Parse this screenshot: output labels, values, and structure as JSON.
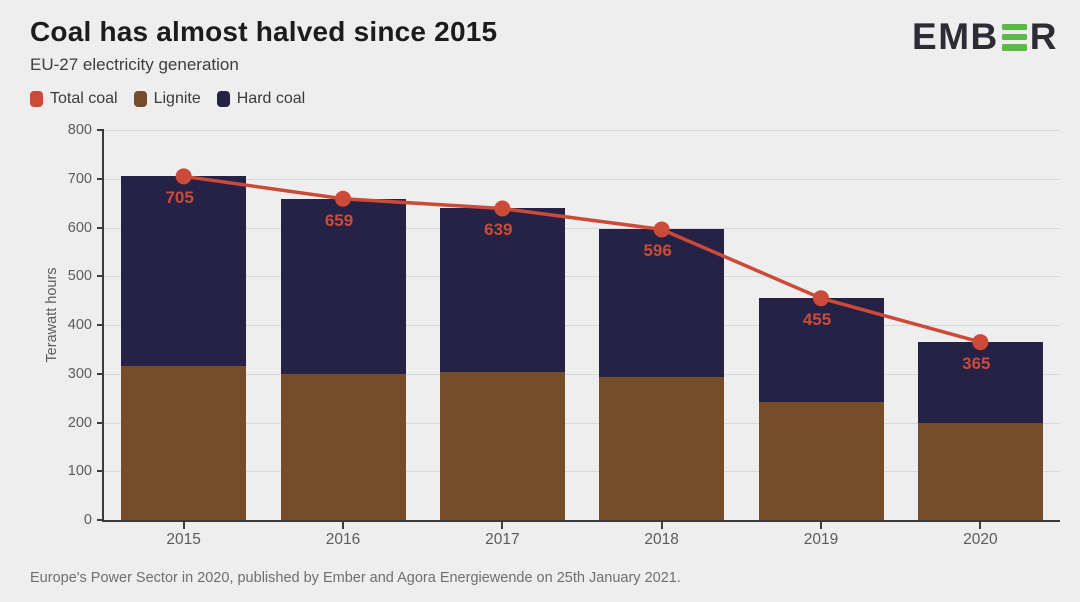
{
  "header": {
    "title": "Coal has almost halved since 2015",
    "subtitle": "EU-27 electricity generation",
    "logo": {
      "prefix": "EMB",
      "suffix": "R",
      "name": "EMBER",
      "green": "#5cb946",
      "dark": "#2c2c34"
    }
  },
  "legend": [
    {
      "label": "Total coal",
      "color": "#cc4a38"
    },
    {
      "label": "Lignite",
      "color": "#754d2b"
    },
    {
      "label": "Hard coal",
      "color": "#262245"
    }
  ],
  "chart_data": {
    "type": "bar",
    "subtype": "stacked-bars-with-line",
    "title": "Coal has almost halved since 2015",
    "subtitle": "EU-27 electricity generation",
    "categories": [
      "2015",
      "2016",
      "2017",
      "2018",
      "2019",
      "2020"
    ],
    "series": [
      {
        "name": "Lignite",
        "type": "bar",
        "color": "#754d2b",
        "values": [
          316,
          300,
          303,
          293,
          242,
          200
        ]
      },
      {
        "name": "Hard coal",
        "type": "bar",
        "color": "#262245",
        "values": [
          389,
          359,
          336,
          303,
          213,
          165
        ]
      },
      {
        "name": "Total coal",
        "type": "line",
        "color": "#cc4a38",
        "values": [
          705,
          659,
          639,
          596,
          455,
          365
        ],
        "labels": [
          "705",
          "659",
          "639",
          "596",
          "455",
          "365"
        ]
      }
    ],
    "xlabel": "",
    "ylabel": "Terawatt hours",
    "ylim": [
      0,
      800
    ],
    "yticks": [
      0,
      100,
      200,
      300,
      400,
      500,
      600,
      700,
      800
    ],
    "grid": true,
    "legend_position": "top-left",
    "colors": {
      "background": "#eeeeef",
      "gridline": "#d8d8db",
      "axis": "#3b3b3b",
      "tick_text": "#5c5c5c"
    }
  },
  "footer": {
    "source": "Europe's Power Sector in 2020, published by Ember and Agora Energiewende on 25th January 2021."
  }
}
